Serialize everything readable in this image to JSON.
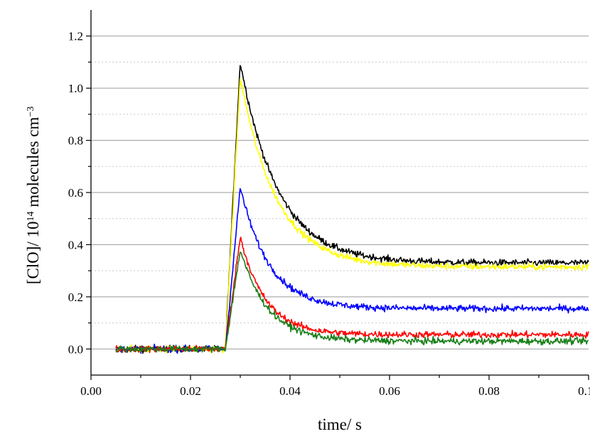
{
  "chart_data": {
    "type": "line",
    "xlabel": "time/ s",
    "ylabel": {
      "prefix": "[ClO]/ 10",
      "exponent": "14",
      "middle": " molecules cm",
      "unit_exponent": "−3"
    },
    "xlim": [
      0.0,
      0.1
    ],
    "ylim": [
      -0.1,
      1.3
    ],
    "x_ticks": [
      "0.00",
      "0.02",
      "0.04",
      "0.06",
      "0.08",
      "0.10"
    ],
    "y_ticks": [
      "0.0",
      "0.2",
      "0.4",
      "0.6",
      "0.8",
      "1.0",
      "1.2"
    ],
    "grid": "horizontal",
    "noise": "high",
    "x_start": 0.005,
    "rise_start": 0.027,
    "peak_time": 0.03,
    "x_end": 0.1,
    "series": [
      {
        "color": "#000000",
        "baseline": 0.0,
        "peak": 1.1,
        "plateau": 0.33,
        "decay_tau": 0.0075
      },
      {
        "color": "#ffff00",
        "baseline": 0.0,
        "peak": 1.04,
        "plateau": 0.315,
        "decay_tau": 0.0072
      },
      {
        "color": "#0000ff",
        "baseline": 0.0,
        "peak": 0.62,
        "plateau": 0.155,
        "decay_tau": 0.0058
      },
      {
        "color": "#ff0000",
        "baseline": 0.0,
        "peak": 0.43,
        "plateau": 0.055,
        "decay_tau": 0.005
      },
      {
        "color": "#1a7f1a",
        "baseline": 0.0,
        "peak": 0.38,
        "plateau": 0.03,
        "decay_tau": 0.0055
      }
    ]
  }
}
